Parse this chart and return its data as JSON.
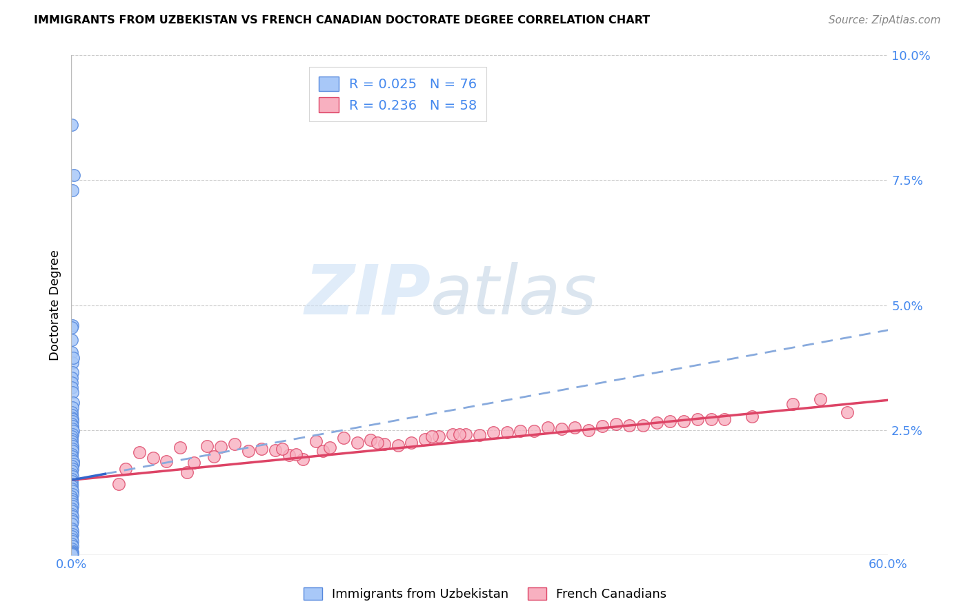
{
  "title": "IMMIGRANTS FROM UZBEKISTAN VS FRENCH CANADIAN DOCTORATE DEGREE CORRELATION CHART",
  "source": "Source: ZipAtlas.com",
  "ylabel": "Doctorate Degree",
  "xlim": [
    0.0,
    60.0
  ],
  "ylim": [
    0.0,
    10.0
  ],
  "color_blue": "#a8c8f8",
  "color_blue_edge": "#5588dd",
  "color_blue_line_solid": "#3366cc",
  "color_blue_line_dash": "#88aadd",
  "color_pink": "#f8b0c0",
  "color_pink_edge": "#dd4466",
  "color_pink_line": "#dd4466",
  "color_label_blue": "#4488ee",
  "grid_color": "#cccccc",
  "blue_x": [
    0.05,
    0.1,
    0.2,
    0.08,
    0.03,
    0.06,
    0.04,
    0.12,
    0.15,
    0.07,
    0.05,
    0.04,
    0.02,
    0.09,
    0.13,
    0.11,
    0.06,
    0.04,
    0.03,
    0.08,
    0.1,
    0.05,
    0.07,
    0.12,
    0.14,
    0.09,
    0.04,
    0.02,
    0.03,
    0.06,
    0.07,
    0.11,
    0.09,
    0.05,
    0.03,
    0.02,
    0.13,
    0.16,
    0.05,
    0.08,
    0.04,
    0.06,
    0.09,
    0.03,
    0.02,
    0.05,
    0.04,
    0.06,
    0.08,
    0.1,
    0.01,
    0.02,
    0.05,
    0.07,
    0.11,
    0.04,
    0.03,
    0.06,
    0.09,
    0.05,
    0.07,
    0.03,
    0.02,
    0.12,
    0.1,
    0.06,
    0.04,
    0.08,
    0.05,
    0.07,
    0.04,
    0.03,
    0.08,
    0.06,
    0.1,
    0.03
  ],
  "blue_y": [
    8.6,
    7.3,
    7.6,
    4.6,
    4.55,
    4.3,
    4.05,
    3.85,
    3.95,
    3.65,
    3.55,
    3.45,
    3.35,
    3.25,
    3.05,
    2.95,
    2.85,
    2.8,
    2.75,
    2.72,
    2.68,
    2.62,
    2.58,
    2.52,
    2.48,
    2.42,
    2.38,
    2.32,
    2.28,
    2.22,
    2.18,
    2.12,
    2.08,
    2.02,
    1.98,
    1.92,
    1.88,
    1.82,
    1.78,
    1.72,
    1.68,
    1.62,
    1.58,
    1.52,
    1.48,
    1.42,
    1.38,
    1.32,
    1.28,
    1.22,
    1.18,
    1.12,
    1.08,
    1.02,
    0.98,
    0.92,
    0.88,
    0.82,
    0.78,
    0.72,
    0.68,
    0.62,
    0.52,
    0.48,
    0.42,
    0.38,
    0.32,
    0.28,
    0.22,
    0.18,
    0.12,
    0.08,
    0.06,
    0.04,
    0.03,
    0.02
  ],
  "pink_x": [
    25.0,
    22.0,
    20.0,
    18.0,
    15.0,
    30.0,
    12.0,
    10.0,
    35.0,
    28.0,
    8.0,
    14.0,
    42.0,
    38.0,
    32.0,
    5.0,
    18.5,
    24.0,
    16.0,
    45.0,
    40.0,
    27.0,
    33.0,
    11.0,
    6.0,
    48.0,
    36.0,
    21.0,
    9.0,
    17.0,
    29.0,
    13.0,
    43.0,
    26.0,
    19.0,
    7.0,
    31.0,
    23.0,
    50.0,
    37.0,
    44.0,
    55.0,
    4.0,
    53.0,
    39.0,
    34.0,
    16.5,
    22.5,
    28.5,
    41.0,
    47.0,
    3.5,
    15.5,
    10.5,
    57.0,
    46.0,
    8.5,
    26.5
  ],
  "pink_y": [
    2.25,
    2.3,
    2.35,
    2.28,
    2.1,
    2.4,
    2.22,
    2.18,
    2.55,
    2.42,
    2.15,
    2.12,
    2.6,
    2.5,
    2.45,
    2.05,
    2.08,
    2.2,
    2.0,
    2.68,
    2.62,
    2.38,
    2.48,
    2.17,
    1.95,
    2.72,
    2.52,
    2.25,
    1.85,
    1.92,
    2.42,
    2.08,
    2.65,
    2.32,
    2.15,
    1.88,
    2.45,
    2.22,
    2.78,
    2.55,
    2.68,
    3.12,
    1.72,
    3.02,
    2.58,
    2.48,
    2.02,
    2.25,
    2.42,
    2.6,
    2.72,
    1.42,
    2.12,
    1.98,
    2.85,
    2.72,
    1.65,
    2.38
  ],
  "blue_trend_x0": 0.0,
  "blue_trend_y0": 1.5,
  "blue_trend_x1": 60.0,
  "blue_trend_y1": 4.5,
  "blue_solid_x0": 0.0,
  "blue_solid_x1": 2.5,
  "pink_trend_x0": 0.0,
  "pink_trend_y0": 1.5,
  "pink_trend_x1": 60.0,
  "pink_trend_y1": 3.1
}
